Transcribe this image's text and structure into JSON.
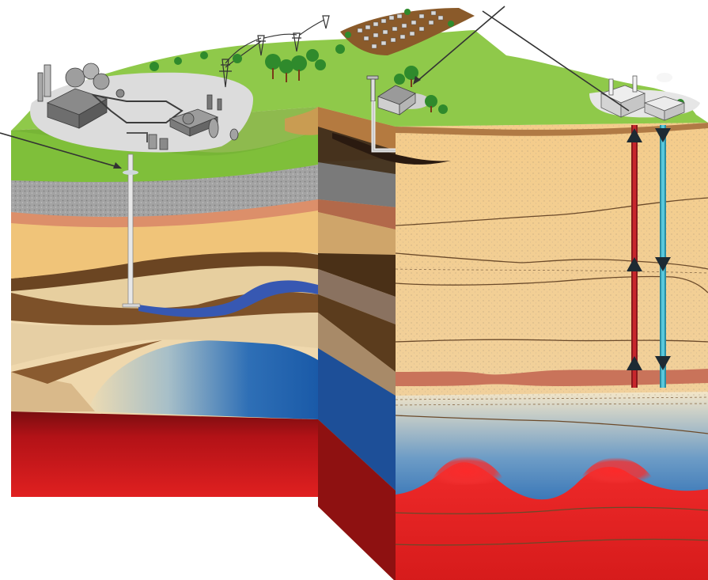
{
  "diagram": {
    "colors": {
      "grass": "#8cc63f",
      "grass_dark": "#6fa830",
      "sand": "#f2c987",
      "gravel": "#9a9a9a",
      "salmon": "#d98a64",
      "brown": "#7a5530",
      "dark_brown": "#5a3a1a",
      "groundwater_blue": "#3a5fb0",
      "reservoir_blue": "#2a6ab8",
      "magma_red": "#d42020",
      "deep_red": "#9c1010",
      "pipe_red": "#c8262c",
      "pipe_cyan": "#4dc3d8"
    },
    "icons": {
      "facility": "industrial-plant-icon",
      "power_plant": "power-plant-icon",
      "house": "house-icon",
      "town": "town-icon",
      "towers": "power-tower-icon",
      "trees": "tree-icon"
    },
    "pipe_arrows": {
      "injection_pipe": "up",
      "production_pipe": "down"
    }
  }
}
